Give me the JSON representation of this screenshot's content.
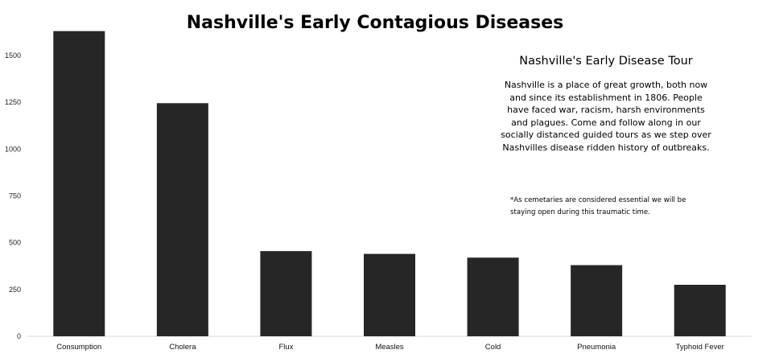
{
  "chart_data": {
    "type": "bar",
    "title": "Nashville's Early Contagious Diseases",
    "categories": [
      "Consumption",
      "Cholera",
      "Flux",
      "Measles",
      "Cold",
      "Pneumonia",
      "Typhoid Fever"
    ],
    "values": [
      1630,
      1245,
      455,
      440,
      420,
      380,
      275
    ],
    "ylim": [
      0,
      1650
    ],
    "yticks": [
      0,
      250,
      500,
      750,
      1000,
      1250,
      1500
    ],
    "bar_color": "#262626",
    "grid": false,
    "xlabel": "",
    "ylabel": ""
  },
  "annotation": {
    "title": "Nashville's Early Disease Tour",
    "body": "Nashville is a place of great growth, both now and since its establishment in 1806. People have faced war, racism, harsh environments and plagues. Come and follow along in our socially distanced guided tours as we step over Nashvilles disease ridden history of outbreaks.",
    "note": "*As cemetaries are considered essential we will be staying open during this traumatic time."
  }
}
